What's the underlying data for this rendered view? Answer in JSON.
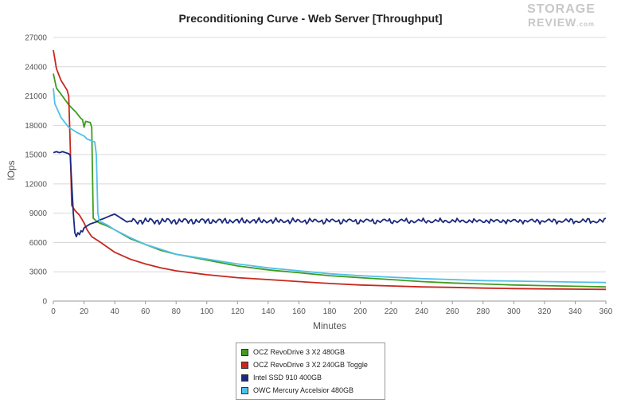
{
  "logo": {
    "line1": "STORAGE",
    "line2": "REVIEW",
    "suffix": ".com"
  },
  "chart_data": {
    "type": "line",
    "title": "Preconditioning Curve - Web Server [Throughput]",
    "xlabel": "Minutes",
    "ylabel": "IOps",
    "xlim": [
      0,
      360
    ],
    "ylim": [
      0,
      27000
    ],
    "xticks": [
      0,
      20,
      40,
      60,
      80,
      100,
      120,
      140,
      160,
      180,
      200,
      220,
      240,
      260,
      280,
      300,
      320,
      340,
      360
    ],
    "yticks": [
      0,
      3000,
      6000,
      9000,
      12000,
      15000,
      18000,
      21000,
      24000,
      27000
    ],
    "grid": "horizontal",
    "legend_position": "bottom-center",
    "series": [
      {
        "name": "OCZ RevoDrive 3 X2 480GB",
        "color": "#3f9c1e",
        "points": [
          [
            0,
            23300
          ],
          [
            2,
            21800
          ],
          [
            5,
            21200
          ],
          [
            10,
            20100
          ],
          [
            15,
            19300
          ],
          [
            18,
            18700
          ],
          [
            19,
            18600
          ],
          [
            20,
            17800
          ],
          [
            21,
            18400
          ],
          [
            24,
            18300
          ],
          [
            25,
            17800
          ],
          [
            26,
            8500
          ],
          [
            28,
            8200
          ],
          [
            30,
            8000
          ],
          [
            35,
            7700
          ],
          [
            40,
            7300
          ],
          [
            50,
            6400
          ],
          [
            60,
            5800
          ],
          [
            70,
            5200
          ],
          [
            80,
            4800
          ],
          [
            90,
            4500
          ],
          [
            100,
            4200
          ],
          [
            120,
            3600
          ],
          [
            140,
            3200
          ],
          [
            160,
            2900
          ],
          [
            180,
            2600
          ],
          [
            200,
            2400
          ],
          [
            220,
            2200
          ],
          [
            240,
            2000
          ],
          [
            260,
            1850
          ],
          [
            280,
            1750
          ],
          [
            300,
            1650
          ],
          [
            320,
            1580
          ],
          [
            340,
            1520
          ],
          [
            360,
            1450
          ]
        ]
      },
      {
        "name": "OCZ RevoDrive 3 X2 240GB Toggle",
        "color": "#c8281f",
        "points": [
          [
            0,
            25700
          ],
          [
            2,
            23800
          ],
          [
            5,
            22600
          ],
          [
            9,
            21600
          ],
          [
            10,
            21000
          ],
          [
            11,
            16000
          ],
          [
            12,
            9800
          ],
          [
            14,
            9300
          ],
          [
            17,
            8800
          ],
          [
            20,
            8000
          ],
          [
            22,
            7300
          ],
          [
            25,
            6600
          ],
          [
            30,
            6100
          ],
          [
            40,
            5000
          ],
          [
            50,
            4300
          ],
          [
            60,
            3800
          ],
          [
            70,
            3400
          ],
          [
            80,
            3100
          ],
          [
            100,
            2700
          ],
          [
            120,
            2400
          ],
          [
            140,
            2200
          ],
          [
            160,
            2000
          ],
          [
            180,
            1800
          ],
          [
            200,
            1650
          ],
          [
            220,
            1550
          ],
          [
            240,
            1450
          ],
          [
            260,
            1400
          ],
          [
            280,
            1330
          ],
          [
            300,
            1280
          ],
          [
            320,
            1250
          ],
          [
            340,
            1220
          ],
          [
            360,
            1200
          ]
        ]
      },
      {
        "name": "Intel SSD 910 400GB",
        "color": "#1a2a7d",
        "points": [
          [
            0,
            15200
          ],
          [
            2,
            15300
          ],
          [
            4,
            15200
          ],
          [
            6,
            15300
          ],
          [
            8,
            15200
          ],
          [
            10,
            15100
          ],
          [
            11,
            14900
          ],
          [
            12,
            12000
          ],
          [
            13,
            9000
          ],
          [
            14,
            7000
          ],
          [
            15,
            6600
          ],
          [
            16,
            7000
          ],
          [
            17,
            6800
          ],
          [
            18,
            7200
          ],
          [
            19,
            7100
          ],
          [
            20,
            7500
          ],
          [
            22,
            7700
          ],
          [
            24,
            7900
          ],
          [
            26,
            8000
          ],
          [
            28,
            8100
          ],
          [
            30,
            8300
          ],
          [
            32,
            8400
          ],
          [
            35,
            8600
          ],
          [
            38,
            8800
          ],
          [
            40,
            8900
          ],
          [
            42,
            8700
          ],
          [
            44,
            8500
          ],
          [
            46,
            8300
          ],
          [
            48,
            8100
          ],
          [
            50,
            8200
          ]
        ]
      },
      {
        "name": "OWC Mercury Accelsior 480GB",
        "color": "#4fc0ea",
        "points": [
          [
            0,
            21800
          ],
          [
            1,
            20200
          ],
          [
            3,
            19500
          ],
          [
            5,
            18800
          ],
          [
            8,
            18200
          ],
          [
            10,
            17800
          ],
          [
            15,
            17300
          ],
          [
            20,
            16900
          ],
          [
            22,
            16600
          ],
          [
            25,
            16400
          ],
          [
            27,
            16300
          ],
          [
            28,
            15000
          ],
          [
            29,
            9000
          ],
          [
            30,
            8200
          ],
          [
            35,
            7800
          ],
          [
            40,
            7300
          ],
          [
            50,
            6500
          ],
          [
            60,
            5800
          ],
          [
            70,
            5300
          ],
          [
            80,
            4800
          ],
          [
            100,
            4300
          ],
          [
            120,
            3800
          ],
          [
            140,
            3400
          ],
          [
            160,
            3100
          ],
          [
            180,
            2800
          ],
          [
            200,
            2600
          ],
          [
            220,
            2450
          ],
          [
            240,
            2300
          ],
          [
            260,
            2200
          ],
          [
            280,
            2100
          ],
          [
            300,
            2050
          ],
          [
            320,
            2000
          ],
          [
            340,
            1950
          ],
          [
            360,
            1900
          ]
        ]
      }
    ]
  }
}
